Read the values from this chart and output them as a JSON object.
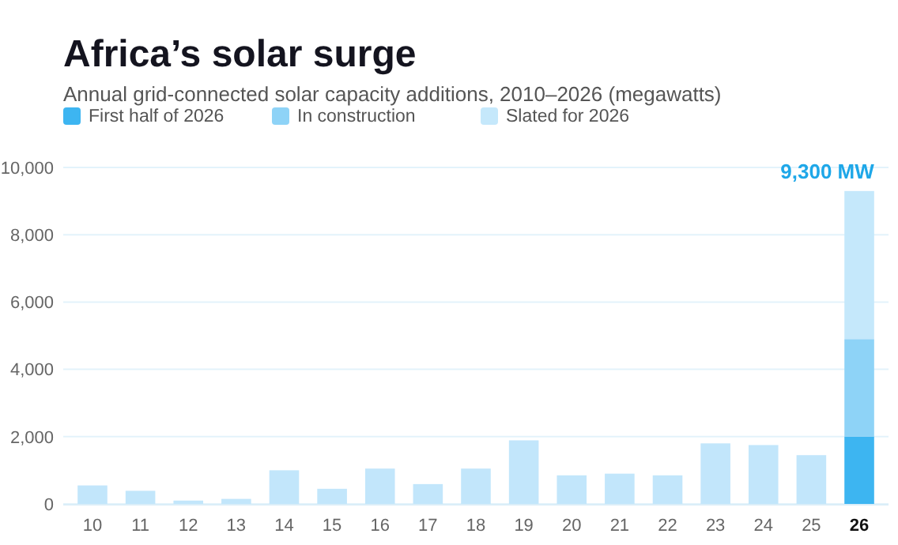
{
  "chart_data": {
    "type": "bar",
    "title": "Africa’s solar surge",
    "subtitle": "Annual grid-connected solar capacity additions, 2010–2026 (megawatts)",
    "categories": [
      "10",
      "11",
      "12",
      "13",
      "14",
      "15",
      "16",
      "17",
      "18",
      "19",
      "20",
      "21",
      "22",
      "23",
      "24",
      "25",
      "26"
    ],
    "stacked": true,
    "series": [
      {
        "color": "#c2e6fb",
        "values": [
          550,
          390,
          100,
          150,
          1000,
          450,
          1050,
          590,
          1050,
          1890,
          850,
          900,
          850,
          1800,
          1750,
          1450,
          null
        ]
      },
      {
        "name": "First half of 2026",
        "color": "#3db5f1",
        "values": [
          null,
          null,
          null,
          null,
          null,
          null,
          null,
          null,
          null,
          null,
          null,
          null,
          null,
          null,
          null,
          null,
          2000
        ]
      },
      {
        "name": "In construction",
        "color": "#8ed3f7",
        "values": [
          null,
          null,
          null,
          null,
          null,
          null,
          null,
          null,
          null,
          null,
          null,
          null,
          null,
          null,
          null,
          null,
          2900
        ]
      },
      {
        "name": "Slated for 2026",
        "color": "#c5e8fb",
        "values": [
          null,
          null,
          null,
          null,
          null,
          null,
          null,
          null,
          null,
          null,
          null,
          null,
          null,
          null,
          null,
          null,
          4400
        ]
      }
    ],
    "ylim": [
      0,
      10000
    ],
    "yticks": [
      {
        "value": 0,
        "label": "0"
      },
      {
        "value": 2000,
        "label": "2,000"
      },
      {
        "value": 4000,
        "label": "4,000"
      },
      {
        "value": 6000,
        "label": "6,000"
      },
      {
        "value": 8000,
        "label": "8,000"
      },
      {
        "value": 10000,
        "label": "10,000"
      }
    ],
    "grid": "y",
    "legend": "top left",
    "annotations": [
      {
        "text": "9,300 MW",
        "x": "26",
        "y": 9300
      }
    ]
  }
}
